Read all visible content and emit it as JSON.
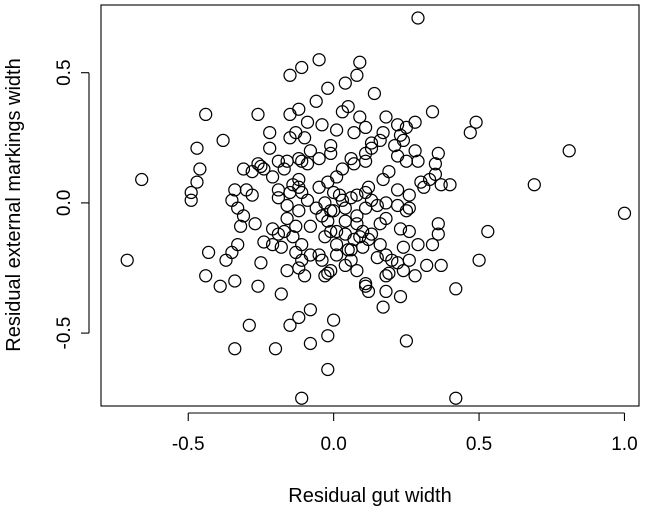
{
  "chart_data": {
    "type": "scatter",
    "xlabel": "Residual gut width",
    "ylabel": "Residual external markings width",
    "xlim": [
      -0.8,
      1.05
    ],
    "ylim": [
      -0.78,
      0.76
    ],
    "x_ticks": [
      -0.5,
      0.0,
      0.5,
      1.0
    ],
    "x_tick_labels": [
      "-0.5",
      "0.0",
      "0.5",
      "1.0"
    ],
    "y_ticks": [
      -0.5,
      0.0,
      0.5
    ],
    "y_tick_labels": [
      "-0.5",
      "0.0",
      "0.5"
    ],
    "marker": "open-circle",
    "grid": false,
    "points": [
      [
        0.29,
        0.71
      ],
      [
        -0.05,
        0.55
      ],
      [
        0.09,
        0.54
      ],
      [
        -0.11,
        0.52
      ],
      [
        -0.15,
        0.49
      ],
      [
        0.08,
        0.49
      ],
      [
        0.04,
        0.46
      ],
      [
        -0.02,
        0.44
      ],
      [
        0.14,
        0.42
      ],
      [
        -0.06,
        0.39
      ],
      [
        0.05,
        0.37
      ],
      [
        -0.44,
        0.34
      ],
      [
        -0.26,
        0.34
      ],
      [
        -0.15,
        0.34
      ],
      [
        -0.12,
        0.36
      ],
      [
        0.03,
        0.35
      ],
      [
        0.09,
        0.33
      ],
      [
        0.34,
        0.35
      ],
      [
        0.18,
        0.33
      ],
      [
        0.28,
        0.31
      ],
      [
        0.49,
        0.31
      ],
      [
        -0.09,
        0.31
      ],
      [
        -0.04,
        0.3
      ],
      [
        0.01,
        0.28
      ],
      [
        0.11,
        0.29
      ],
      [
        0.22,
        0.3
      ],
      [
        0.25,
        0.29
      ],
      [
        -0.13,
        0.27
      ],
      [
        -0.22,
        0.27
      ],
      [
        0.07,
        0.27
      ],
      [
        0.17,
        0.27
      ],
      [
        0.23,
        0.26
      ],
      [
        0.47,
        0.27
      ],
      [
        -0.15,
        0.25
      ],
      [
        -0.1,
        0.25
      ],
      [
        -0.38,
        0.24
      ],
      [
        0.16,
        0.24
      ],
      [
        0.24,
        0.24
      ],
      [
        -0.01,
        0.22
      ],
      [
        0.13,
        0.23
      ],
      [
        0.21,
        0.22
      ],
      [
        -0.47,
        0.21
      ],
      [
        -0.22,
        0.21
      ],
      [
        0.13,
        0.21
      ],
      [
        0.28,
        0.2
      ],
      [
        -0.08,
        0.2
      ],
      [
        0.36,
        0.19
      ],
      [
        -0.01,
        0.19
      ],
      [
        0.11,
        0.19
      ],
      [
        0.81,
        0.2
      ],
      [
        0.22,
        0.18
      ],
      [
        -0.05,
        0.17
      ],
      [
        -0.12,
        0.17
      ],
      [
        -0.19,
        0.16
      ],
      [
        0.06,
        0.17
      ],
      [
        -0.16,
        0.16
      ],
      [
        0.25,
        0.16
      ],
      [
        0.29,
        0.16
      ],
      [
        -0.11,
        0.16
      ],
      [
        0.35,
        0.15
      ],
      [
        -0.26,
        0.15
      ],
      [
        -0.09,
        0.15
      ],
      [
        0.07,
        0.15
      ],
      [
        0.11,
        0.16
      ],
      [
        -0.31,
        0.13
      ],
      [
        -0.25,
        0.14
      ],
      [
        -0.28,
        0.12
      ],
      [
        -0.24,
        0.13
      ],
      [
        -0.46,
        0.13
      ],
      [
        0.03,
        0.13
      ],
      [
        -0.17,
        0.13
      ],
      [
        0.19,
        0.12
      ],
      [
        0.35,
        0.11
      ],
      [
        -0.21,
        0.1
      ],
      [
        0.01,
        0.1
      ],
      [
        -0.66,
        0.09
      ],
      [
        -0.12,
        0.09
      ],
      [
        0.17,
        0.09
      ],
      [
        0.33,
        0.09
      ],
      [
        -0.47,
        0.08
      ],
      [
        -0.02,
        0.08
      ],
      [
        -0.14,
        0.07
      ],
      [
        0.3,
        0.08
      ],
      [
        0.69,
        0.07
      ],
      [
        0.37,
        0.07
      ],
      [
        0.4,
        0.07
      ],
      [
        0.31,
        0.06
      ],
      [
        -0.05,
        0.06
      ],
      [
        0.12,
        0.06
      ],
      [
        -0.12,
        0.06
      ],
      [
        -0.34,
        0.05
      ],
      [
        -0.3,
        0.05
      ],
      [
        -0.19,
        0.05
      ],
      [
        0.22,
        0.05
      ],
      [
        -0.49,
        0.04
      ],
      [
        -0.15,
        0.04
      ],
      [
        -0.11,
        0.04
      ],
      [
        0.0,
        0.04
      ],
      [
        0.11,
        0.04
      ],
      [
        0.02,
        0.03
      ],
      [
        -0.28,
        0.03
      ],
      [
        0.08,
        0.03
      ],
      [
        0.26,
        0.03
      ],
      [
        -0.19,
        0.02
      ],
      [
        0.06,
        0.02
      ],
      [
        0.03,
        0.01
      ],
      [
        -0.49,
        0.01
      ],
      [
        -0.35,
        0.01
      ],
      [
        -0.09,
        0.01
      ],
      [
        0.13,
        0.01
      ],
      [
        0.18,
        0.0
      ],
      [
        -0.03,
        0.0
      ],
      [
        -0.16,
        -0.01
      ],
      [
        0.15,
        -0.01
      ],
      [
        0.22,
        -0.01
      ],
      [
        -0.33,
        -0.02
      ],
      [
        0.04,
        -0.02
      ],
      [
        0.11,
        -0.02
      ],
      [
        0.26,
        -0.02
      ],
      [
        -0.06,
        -0.02
      ],
      [
        -0.12,
        -0.03
      ],
      [
        -0.01,
        -0.03
      ],
      [
        0.0,
        -0.03
      ],
      [
        0.25,
        -0.03
      ],
      [
        1.0,
        -0.04
      ],
      [
        -0.31,
        -0.05
      ],
      [
        -0.04,
        -0.05
      ],
      [
        0.08,
        -0.05
      ],
      [
        0.18,
        -0.06
      ],
      [
        -0.16,
        -0.06
      ],
      [
        -0.02,
        -0.07
      ],
      [
        0.04,
        -0.07
      ],
      [
        -0.27,
        -0.08
      ],
      [
        0.16,
        -0.08
      ],
      [
        0.08,
        -0.08
      ],
      [
        0.36,
        -0.08
      ],
      [
        -0.32,
        -0.09
      ],
      [
        -0.13,
        -0.09
      ],
      [
        -0.08,
        -0.09
      ],
      [
        0.23,
        -0.1
      ],
      [
        -0.21,
        -0.1
      ],
      [
        -0.01,
        -0.11
      ],
      [
        0.01,
        -0.11
      ],
      [
        0.1,
        -0.11
      ],
      [
        0.26,
        -0.11
      ],
      [
        -0.17,
        -0.11
      ],
      [
        0.53,
        -0.11
      ],
      [
        -0.19,
        -0.12
      ],
      [
        0.04,
        -0.12
      ],
      [
        0.13,
        -0.12
      ],
      [
        0.36,
        -0.12
      ],
      [
        -0.14,
        -0.13
      ],
      [
        -0.03,
        -0.13
      ],
      [
        0.09,
        -0.13
      ],
      [
        0.12,
        -0.14
      ],
      [
        0.07,
        -0.14
      ],
      [
        -0.24,
        -0.15
      ],
      [
        -0.33,
        -0.16
      ],
      [
        -0.21,
        -0.16
      ],
      [
        -0.11,
        -0.16
      ],
      [
        0.01,
        -0.16
      ],
      [
        0.16,
        -0.16
      ],
      [
        0.29,
        -0.16
      ],
      [
        0.34,
        -0.16
      ],
      [
        0.1,
        -0.17
      ],
      [
        0.24,
        -0.17
      ],
      [
        -0.18,
        -0.17
      ],
      [
        0.05,
        -0.18
      ],
      [
        0.06,
        -0.18
      ],
      [
        -0.43,
        -0.19
      ],
      [
        -0.13,
        -0.19
      ],
      [
        -0.05,
        -0.2
      ],
      [
        0.18,
        -0.2
      ],
      [
        -0.08,
        -0.2
      ],
      [
        -0.35,
        -0.19
      ],
      [
        0.01,
        -0.2
      ],
      [
        0.15,
        -0.21
      ],
      [
        -0.11,
        -0.22
      ],
      [
        -0.04,
        -0.22
      ],
      [
        0.06,
        -0.22
      ],
      [
        0.2,
        -0.22
      ],
      [
        -0.71,
        -0.22
      ],
      [
        -0.37,
        -0.22
      ],
      [
        0.26,
        -0.22
      ],
      [
        0.5,
        -0.22
      ],
      [
        -0.25,
        -0.23
      ],
      [
        0.22,
        -0.23
      ],
      [
        0.04,
        -0.24
      ],
      [
        0.32,
        -0.24
      ],
      [
        0.37,
        -0.24
      ],
      [
        -0.12,
        -0.25
      ],
      [
        -0.01,
        -0.26
      ],
      [
        -0.16,
        -0.26
      ],
      [
        0.24,
        -0.26
      ],
      [
        0.08,
        -0.26
      ],
      [
        -0.02,
        -0.27
      ],
      [
        0.19,
        -0.27
      ],
      [
        0.28,
        -0.28
      ],
      [
        -0.44,
        -0.28
      ],
      [
        0.18,
        -0.28
      ],
      [
        -0.03,
        -0.28
      ],
      [
        -0.1,
        -0.28
      ],
      [
        -0.34,
        -0.3
      ],
      [
        0.11,
        -0.31
      ],
      [
        -0.26,
        -0.32
      ],
      [
        0.11,
        -0.32
      ],
      [
        0.42,
        -0.33
      ],
      [
        -0.39,
        -0.32
      ],
      [
        0.18,
        -0.34
      ],
      [
        0.12,
        -0.34
      ],
      [
        -0.18,
        -0.35
      ],
      [
        0.23,
        -0.36
      ],
      [
        0.17,
        -0.4
      ],
      [
        -0.08,
        -0.41
      ],
      [
        -0.12,
        -0.44
      ],
      [
        0.0,
        -0.45
      ],
      [
        -0.15,
        -0.47
      ],
      [
        -0.29,
        -0.47
      ],
      [
        -0.02,
        -0.51
      ],
      [
        0.25,
        -0.53
      ],
      [
        -0.08,
        -0.54
      ],
      [
        -0.2,
        -0.56
      ],
      [
        -0.34,
        -0.56
      ],
      [
        -0.02,
        -0.64
      ],
      [
        -0.11,
        -0.75
      ],
      [
        0.42,
        -0.75
      ]
    ]
  }
}
